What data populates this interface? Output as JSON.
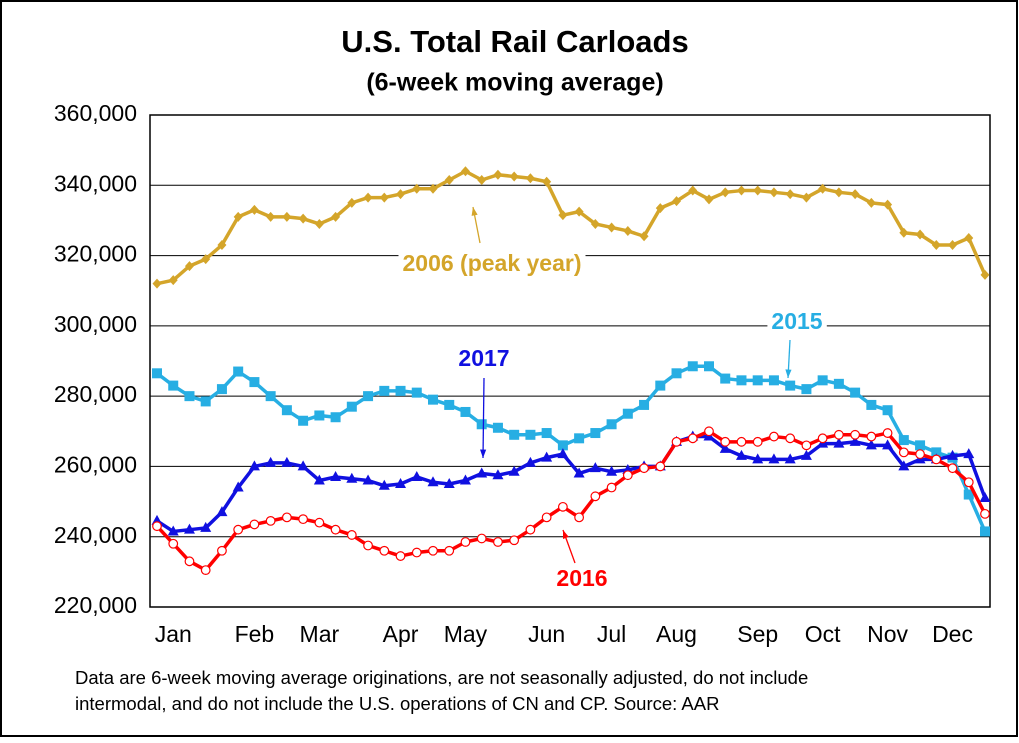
{
  "chart_data": {
    "type": "line",
    "title": "U.S. Total Rail Carloads",
    "subtitle": "(6-week moving average)",
    "categories": [
      null,
      "Jan",
      null,
      null,
      null,
      null,
      "Feb",
      null,
      null,
      null,
      "Mar",
      null,
      null,
      null,
      null,
      "Apr",
      null,
      null,
      null,
      "May",
      null,
      null,
      null,
      null,
      "Jun",
      null,
      null,
      null,
      "Jul",
      null,
      null,
      null,
      "Aug",
      null,
      null,
      null,
      null,
      "Sep",
      null,
      null,
      null,
      "Oct",
      null,
      null,
      null,
      "Nov",
      null,
      null,
      null,
      "Dec",
      null,
      null
    ],
    "ylim": [
      220000,
      360000
    ],
    "yticks": [
      {
        "value": 220000,
        "label": "220,000"
      },
      {
        "value": 240000,
        "label": "240,000"
      },
      {
        "value": 260000,
        "label": "260,000"
      },
      {
        "value": 280000,
        "label": "280,000"
      },
      {
        "value": 300000,
        "label": "300,000"
      },
      {
        "value": 320000,
        "label": "320,000"
      },
      {
        "value": 340000,
        "label": "340,000"
      },
      {
        "value": 360000,
        "label": "360,000"
      }
    ],
    "grid": true,
    "series": [
      {
        "name": "2006 (peak year)",
        "color": "#d4a52a",
        "marker": "diamond",
        "values": [
          312000,
          313000,
          317000,
          319000,
          323000,
          331000,
          333000,
          331000,
          331000,
          330500,
          329000,
          331000,
          335000,
          336500,
          336500,
          337500,
          339000,
          339000,
          341500,
          344000,
          341500,
          343000,
          342500,
          342000,
          341000,
          331500,
          332500,
          329000,
          328000,
          327000,
          325500,
          333500,
          335500,
          338500,
          336000,
          338000,
          338500,
          338500,
          338000,
          337500,
          336500,
          339000,
          338000,
          337500,
          335000,
          334500,
          326500,
          326000,
          323000,
          323000,
          325000,
          314500
        ]
      },
      {
        "name": "2015",
        "color": "#27aee3",
        "marker": "square",
        "values": [
          286500,
          283000,
          280000,
          278500,
          282000,
          287000,
          284000,
          280000,
          276000,
          273000,
          274500,
          274000,
          277000,
          280000,
          281500,
          281500,
          281000,
          279000,
          277500,
          275500,
          272000,
          271000,
          269000,
          269000,
          269500,
          266000,
          268000,
          269500,
          272000,
          275000,
          277500,
          283000,
          286500,
          288500,
          288500,
          285000,
          284500,
          284500,
          284500,
          283000,
          282000,
          284500,
          283500,
          281000,
          277500,
          276000,
          267500,
          266000,
          264000,
          262500,
          252000,
          241500
        ]
      },
      {
        "name": "2017",
        "color": "#1010e0",
        "marker": "triangle",
        "values": [
          244500,
          241500,
          242000,
          242500,
          247000,
          254000,
          260000,
          261000,
          261000,
          260000,
          256000,
          257000,
          256500,
          256000,
          254500,
          255000,
          257000,
          255500,
          255000,
          256000,
          258000,
          257500,
          258500,
          261000,
          262500,
          263500,
          258000,
          259500,
          258500,
          259000,
          260000,
          260000,
          267000,
          268500,
          268500,
          265000,
          263000,
          262000,
          262000,
          262000,
          263000,
          266500,
          266500,
          267000,
          266000,
          266000,
          260000,
          262000,
          262000,
          263000,
          263500,
          251000
        ]
      },
      {
        "name": "2016",
        "color": "#ff0000",
        "marker": "circle",
        "values": [
          243000,
          238000,
          233000,
          230500,
          236000,
          242000,
          243500,
          244500,
          245500,
          245000,
          244000,
          242000,
          240500,
          237500,
          236000,
          234500,
          235500,
          236000,
          236000,
          238500,
          239500,
          238500,
          239000,
          242000,
          245500,
          248500,
          245500,
          251500,
          254000,
          257500,
          259500,
          260000,
          267000,
          268000,
          270000,
          267000,
          267000,
          267000,
          268500,
          268000,
          266000,
          268000,
          269000,
          269000,
          268500,
          269500,
          264000,
          263500,
          262000,
          259500,
          255500,
          246500
        ]
      }
    ],
    "note": [
      "Data are 6-week moving average originations, are not seasonally adjusted, do not include",
      "intermodal, and do not include the U.S. operations of CN and CP.   Source: AAR"
    ]
  }
}
